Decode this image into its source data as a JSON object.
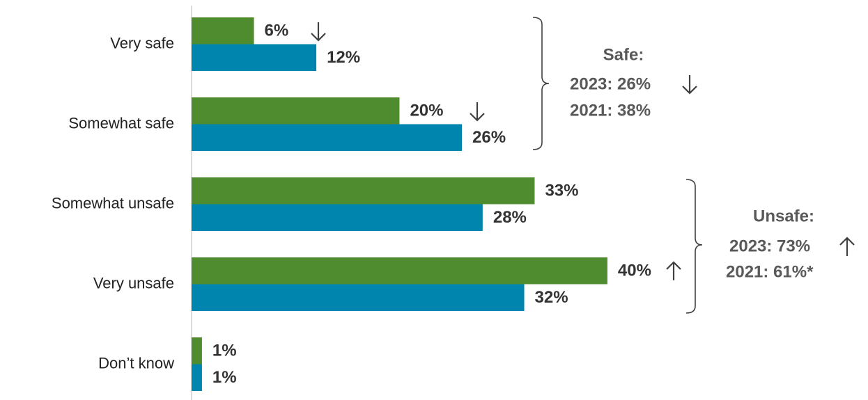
{
  "chart_data": {
    "type": "bar",
    "orientation": "horizontal",
    "categories": [
      "Very safe",
      "Somewhat safe",
      "Somewhat unsafe",
      "Very unsafe",
      "Don’t know"
    ],
    "series": [
      {
        "color": "#4e8c2f",
        "values": [
          6,
          20,
          33,
          40,
          1
        ],
        "value_labels": [
          "6%",
          "20%",
          "33%",
          "40%",
          "1%"
        ]
      },
      {
        "color": "#0086ae",
        "values": [
          12,
          26,
          28,
          32,
          1
        ],
        "value_labels": [
          "12%",
          "26%",
          "28%",
          "32%",
          "1%"
        ]
      }
    ],
    "xlim": [
      0,
      65
    ],
    "annotations": [
      {
        "lines": [
          "Safe:",
          "2023: 26%",
          "2021: 38%"
        ]
      },
      {
        "lines": [
          "Unsafe:",
          "2023: 73%",
          "2021: 61%*"
        ]
      }
    ]
  }
}
